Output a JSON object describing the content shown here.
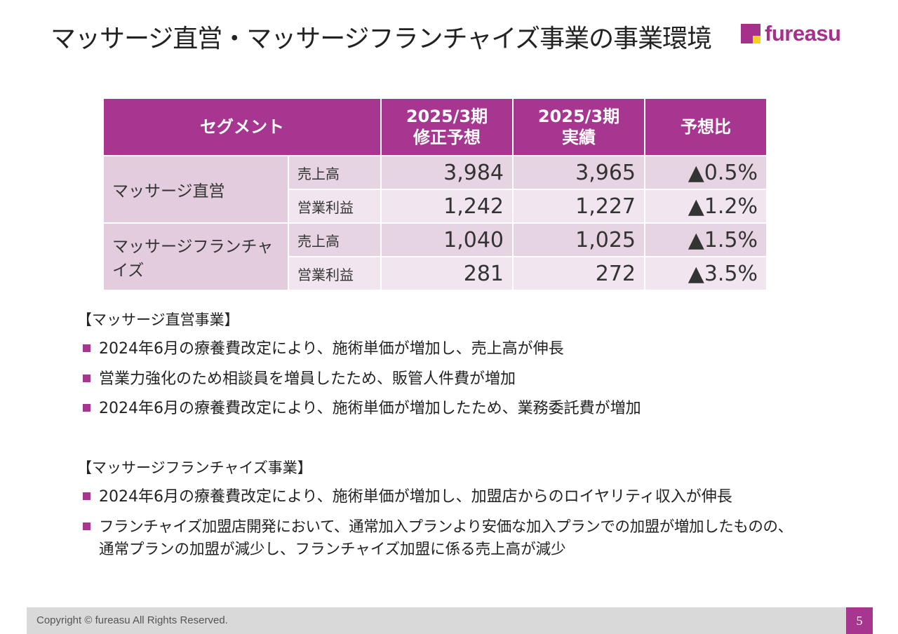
{
  "title": "マッサージ直営・マッサージフランチャイズ事業の事業環境",
  "logo": {
    "text": "fureasu"
  },
  "table": {
    "headers": [
      "セグメント",
      "2025/3期",
      "修正予想",
      "2025/3期",
      "実績",
      "予想比"
    ],
    "rows": [
      {
        "segment": "マッサージ直営",
        "metric": "売上高",
        "forecast": "3,984",
        "actual": "3,965",
        "ratio": "▲0.5%"
      },
      {
        "segment": "",
        "metric": "営業利益",
        "forecast": "1,242",
        "actual": "1,227",
        "ratio": "▲1.2%"
      },
      {
        "segment": "マッサージフランチャイズ",
        "metric": "売上高",
        "forecast": "1,040",
        "actual": "1,025",
        "ratio": "▲1.5%"
      },
      {
        "segment": "",
        "metric": "営業利益",
        "forecast": "281",
        "actual": "272",
        "ratio": "▲3.5%"
      }
    ]
  },
  "sections": [
    {
      "heading": "【マッサージ直営事業】",
      "bullets": [
        "2024年6月の療養費改定により、施術単価が増加し、売上高が伸長",
        "営業力強化のため相談員を増員したため、販管人件費が増加",
        "2024年6月の療養費改定により、施術単価が増加したため、業務委託費が増加"
      ]
    },
    {
      "heading": "【マッサージフランチャイズ事業】",
      "bullets": [
        "2024年6月の療養費改定により、施術単価が増加し、加盟店からのロイヤリティ収入が伸長",
        "フランチャイズ加盟店開発において、通常加入プランより安価な加入プランでの加盟が増加したものの、",
        "通常プランの加盟が減少し、フランチャイズ加盟に係る売上高が減少"
      ]
    }
  ],
  "footer": {
    "copyright": "Copyright © fureasu All Rights Reserved.",
    "page": "5"
  },
  "colors": {
    "accent": "#a6368f",
    "logo_yellow": "#f2d21a",
    "row_dark": "#e6d4e2",
    "row_light": "#f1e6ef"
  }
}
